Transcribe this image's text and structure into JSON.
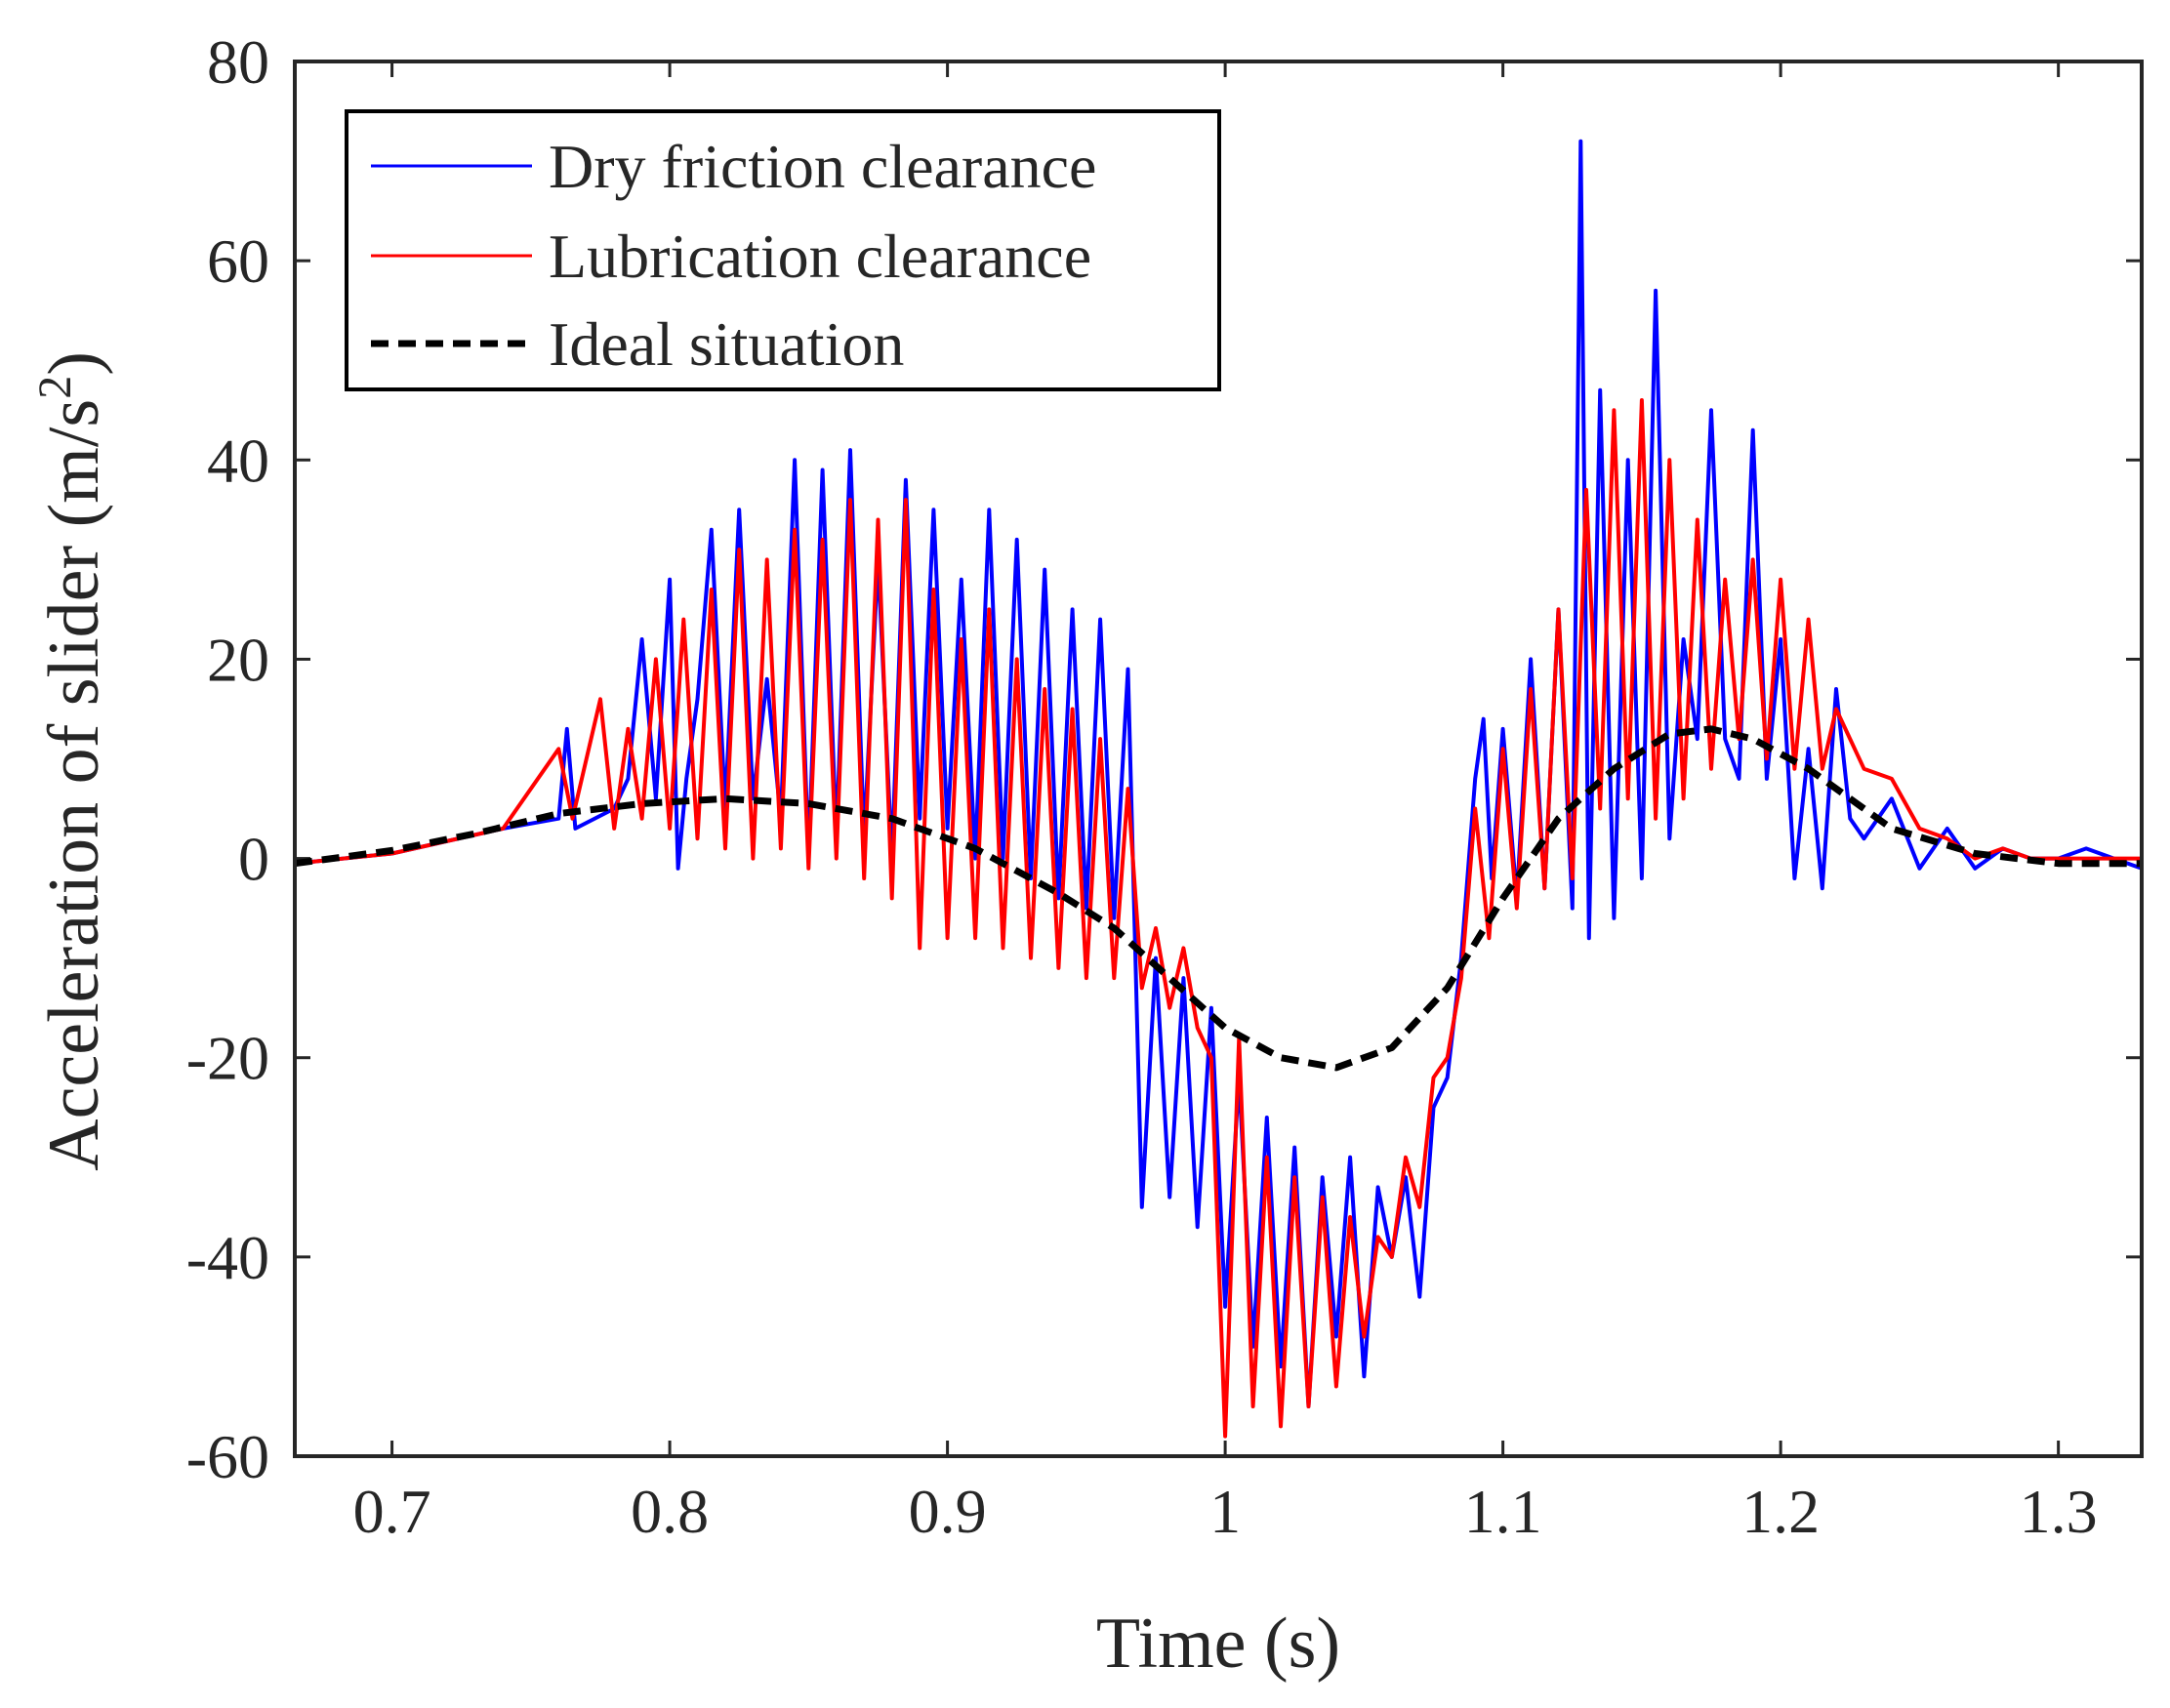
{
  "chart_data": {
    "type": "line",
    "title": "",
    "xlabel": "Time (s)",
    "ylabel_main": "Acceleration of slider (m/s",
    "ylabel_sup": "2",
    "ylabel_close": ")",
    "xlim": [
      0.665,
      1.33
    ],
    "ylim": [
      -60,
      80
    ],
    "xticks": [
      0.7,
      0.8,
      0.9,
      1.0,
      1.1,
      1.2,
      1.3
    ],
    "xtick_labels": [
      "0.7",
      "0.8",
      "0.9",
      "1",
      "1.1",
      "1.2",
      "1.3"
    ],
    "yticks": [
      -60,
      -40,
      -20,
      0,
      20,
      40,
      60,
      80
    ],
    "ytick_labels": [
      "-60",
      "-40",
      "-20",
      "0",
      "20",
      "40",
      "60",
      "80"
    ],
    "legend_position": "top-left",
    "series": [
      {
        "name": "Dry friction clearance",
        "color": "#0000ff",
        "style": "solid",
        "x": [
          0.665,
          0.7,
          0.74,
          0.76,
          0.763,
          0.766,
          0.78,
          0.785,
          0.79,
          0.795,
          0.8,
          0.803,
          0.806,
          0.81,
          0.815,
          0.82,
          0.825,
          0.83,
          0.835,
          0.84,
          0.845,
          0.85,
          0.855,
          0.86,
          0.865,
          0.87,
          0.875,
          0.88,
          0.885,
          0.89,
          0.895,
          0.9,
          0.905,
          0.91,
          0.915,
          0.92,
          0.925,
          0.93,
          0.935,
          0.94,
          0.945,
          0.95,
          0.955,
          0.96,
          0.965,
          0.97,
          0.975,
          0.98,
          0.985,
          0.99,
          0.995,
          1.0,
          1.005,
          1.01,
          1.015,
          1.02,
          1.025,
          1.03,
          1.035,
          1.04,
          1.045,
          1.05,
          1.055,
          1.06,
          1.065,
          1.07,
          1.075,
          1.08,
          1.085,
          1.09,
          1.093,
          1.096,
          1.1,
          1.105,
          1.11,
          1.115,
          1.12,
          1.125,
          1.128,
          1.131,
          1.135,
          1.14,
          1.145,
          1.15,
          1.155,
          1.16,
          1.165,
          1.17,
          1.175,
          1.18,
          1.185,
          1.19,
          1.195,
          1.2,
          1.205,
          1.21,
          1.215,
          1.22,
          1.225,
          1.23,
          1.24,
          1.25,
          1.26,
          1.27,
          1.28,
          1.29,
          1.3,
          1.31,
          1.32,
          1.33
        ],
        "y": [
          -0.5,
          0.5,
          3,
          4,
          13,
          3,
          5,
          8,
          22,
          6,
          28,
          -1,
          8,
          16,
          33,
          5,
          35,
          6,
          18,
          4,
          40,
          0,
          39,
          2,
          41,
          2,
          30,
          0,
          38,
          4,
          35,
          3,
          28,
          0,
          35,
          0,
          32,
          -2,
          29,
          -4,
          25,
          -5,
          24,
          -6,
          19,
          -35,
          -10,
          -34,
          -12,
          -37,
          -15,
          -45,
          -22,
          -49,
          -26,
          -51,
          -29,
          -55,
          -32,
          -48,
          -30,
          -52,
          -33,
          -40,
          -32,
          -44,
          -25,
          -22,
          -10,
          8,
          14,
          -2,
          13,
          -4,
          20,
          -3,
          25,
          -5,
          72,
          -8,
          47,
          -6,
          40,
          -2,
          57,
          2,
          22,
          12,
          45,
          12,
          8,
          43,
          8,
          22,
          -2,
          11,
          -3,
          17,
          4,
          2,
          6,
          -1,
          3,
          -1,
          1,
          0,
          0,
          1,
          0,
          -1
        ]
      },
      {
        "name": "Lubrication clearance",
        "color": "#ff0000",
        "style": "solid",
        "x": [
          0.665,
          0.7,
          0.74,
          0.76,
          0.765,
          0.775,
          0.78,
          0.785,
          0.79,
          0.795,
          0.8,
          0.805,
          0.81,
          0.815,
          0.82,
          0.825,
          0.83,
          0.835,
          0.84,
          0.845,
          0.85,
          0.855,
          0.86,
          0.865,
          0.87,
          0.875,
          0.88,
          0.885,
          0.89,
          0.895,
          0.9,
          0.905,
          0.91,
          0.915,
          0.92,
          0.925,
          0.93,
          0.935,
          0.94,
          0.945,
          0.95,
          0.955,
          0.96,
          0.965,
          0.97,
          0.975,
          0.98,
          0.985,
          0.99,
          0.995,
          1.0,
          1.005,
          1.01,
          1.015,
          1.02,
          1.025,
          1.03,
          1.035,
          1.04,
          1.045,
          1.05,
          1.055,
          1.06,
          1.065,
          1.07,
          1.075,
          1.08,
          1.085,
          1.09,
          1.095,
          1.1,
          1.105,
          1.11,
          1.115,
          1.12,
          1.125,
          1.13,
          1.135,
          1.14,
          1.145,
          1.15,
          1.155,
          1.16,
          1.165,
          1.17,
          1.175,
          1.18,
          1.185,
          1.19,
          1.195,
          1.2,
          1.205,
          1.21,
          1.215,
          1.22,
          1.23,
          1.24,
          1.25,
          1.26,
          1.27,
          1.28,
          1.29,
          1.3,
          1.31,
          1.32,
          1.33
        ],
        "y": [
          -0.5,
          0.5,
          3,
          11,
          4,
          16,
          3,
          13,
          4,
          20,
          3,
          24,
          2,
          27,
          1,
          31,
          0,
          30,
          1,
          33,
          -1,
          32,
          0,
          36,
          -2,
          34,
          -4,
          36,
          -9,
          27,
          -8,
          22,
          -8,
          25,
          -9,
          20,
          -10,
          17,
          -11,
          15,
          -12,
          12,
          -12,
          7,
          -13,
          -7,
          -15,
          -9,
          -17,
          -20,
          -58,
          -18,
          -55,
          -30,
          -57,
          -32,
          -55,
          -34,
          -53,
          -36,
          -48,
          -38,
          -40,
          -30,
          -35,
          -22,
          -20,
          -12,
          5,
          -8,
          11,
          -5,
          17,
          -3,
          25,
          -2,
          37,
          5,
          45,
          6,
          46,
          4,
          40,
          6,
          34,
          9,
          28,
          12,
          30,
          10,
          28,
          9,
          24,
          9,
          15,
          9,
          8,
          3,
          2,
          0,
          1,
          0,
          0,
          0,
          0,
          0
        ]
      },
      {
        "name": "Ideal situation",
        "color": "#000000",
        "style": "dashed",
        "x": [
          0.665,
          0.7,
          0.73,
          0.76,
          0.79,
          0.82,
          0.85,
          0.88,
          0.91,
          0.94,
          0.96,
          0.98,
          1.0,
          1.02,
          1.04,
          1.06,
          1.08,
          1.1,
          1.12,
          1.14,
          1.16,
          1.175,
          1.19,
          1.21,
          1.24,
          1.27,
          1.3,
          1.33
        ],
        "y": [
          -0.5,
          0.8,
          2.5,
          4.5,
          5.5,
          6,
          5.5,
          4,
          1,
          -3.5,
          -7,
          -12,
          -17,
          -20,
          -21,
          -19,
          -13,
          -4,
          4,
          9,
          12.5,
          13,
          12,
          9,
          3,
          0.5,
          -0.5,
          -0.5
        ]
      }
    ]
  }
}
